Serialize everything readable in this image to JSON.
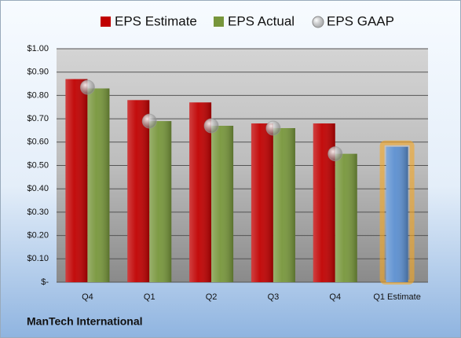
{
  "chart_data": {
    "type": "bar",
    "footer": "ManTech International",
    "categories": [
      "Q4",
      "Q1",
      "Q2",
      "Q3",
      "Q4",
      "Q1 Estimate"
    ],
    "series": [
      {
        "name": "EPS Estimate",
        "color": "#c00000",
        "point_colors": [
          "#c00000",
          "#c00000",
          "#c00000",
          "#c00000",
          "#c00000",
          "#5b8fd0"
        ],
        "values": [
          0.87,
          0.78,
          0.77,
          0.68,
          0.68,
          0.58
        ]
      },
      {
        "name": "EPS Actual",
        "color": "#77963b",
        "values": [
          0.83,
          0.69,
          0.67,
          0.66,
          0.55,
          null
        ]
      },
      {
        "name": "EPS GAAP",
        "color": "#a0a0a0",
        "marker": "circle",
        "values": [
          0.835,
          0.69,
          0.67,
          0.66,
          0.55,
          null
        ]
      }
    ],
    "ylim": [
      0,
      1
    ],
    "yticks": [
      {
        "value": 0,
        "label": "$-"
      },
      {
        "value": 0.1,
        "label": "$0.10"
      },
      {
        "value": 0.2,
        "label": "$0.20"
      },
      {
        "value": 0.3,
        "label": "$0.30"
      },
      {
        "value": 0.4,
        "label": "$0.40"
      },
      {
        "value": 0.5,
        "label": "$0.50"
      },
      {
        "value": 0.6,
        "label": "$0.60"
      },
      {
        "value": 0.7,
        "label": "$0.70"
      },
      {
        "value": 0.8,
        "label": "$0.80"
      },
      {
        "value": 0.9,
        "label": "$0.90"
      },
      {
        "value": 1,
        "label": "$1.00"
      }
    ],
    "grid": true
  }
}
